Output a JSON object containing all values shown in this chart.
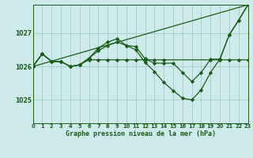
{
  "title": "Graphe pression niveau de la mer (hPa)",
  "background_color": "#ceeaea",
  "grid_color": "#a8d0d0",
  "line_color": "#1a5c1a",
  "yticks": [
    1025,
    1026,
    1027
  ],
  "ylim": [
    1024.3,
    1027.85
  ],
  "xlim": [
    0,
    23
  ],
  "series": [
    {
      "x": [
        0,
        1,
        2,
        3,
        4,
        5,
        6,
        7,
        8,
        9,
        10,
        11,
        12,
        13,
        14,
        15,
        16,
        17,
        18,
        19,
        20,
        21,
        22,
        23
      ],
      "y": [
        1026.0,
        1026.4,
        1026.15,
        1026.15,
        1026.0,
        1026.05,
        1026.2,
        1026.2,
        1026.2,
        1026.2,
        1026.2,
        1026.2,
        1026.2,
        1026.2,
        1026.2,
        1026.2,
        1026.2,
        1026.2,
        1026.2,
        1026.2,
        1026.2,
        1026.2,
        1026.2,
        1026.2
      ]
    },
    {
      "x": [
        0,
        23
      ],
      "y": [
        1026.0,
        1027.85
      ]
    },
    {
      "x": [
        0,
        1,
        2,
        3,
        4,
        5,
        6,
        7,
        8,
        9,
        10,
        11,
        12,
        13,
        14,
        15,
        16,
        17,
        18,
        19,
        20,
        21,
        22,
        23
      ],
      "y": [
        1026.0,
        1026.4,
        1026.15,
        1026.15,
        1026.0,
        1026.05,
        1026.25,
        1026.45,
        1026.62,
        1026.72,
        1026.62,
        1026.62,
        1026.22,
        1026.15,
        1026.15,
        1026.15,
        1025.82,
        1025.55,
        1025.82,
        1026.22,
        1026.22,
        1026.9,
        1027.35,
        1027.85
      ]
    },
    {
      "x": [
        0,
        1,
        2,
        3,
        4,
        5,
        6,
        7,
        8,
        9,
        10,
        11,
        12,
        13,
        14,
        15,
        16,
        17,
        18,
        19,
        20,
        21,
        22,
        23
      ],
      "y": [
        1026.0,
        1026.4,
        1026.15,
        1026.15,
        1026.0,
        1026.05,
        1026.25,
        1026.55,
        1026.72,
        1026.82,
        1026.62,
        1026.5,
        1026.12,
        1025.85,
        1025.52,
        1025.28,
        1025.05,
        1025.0,
        1025.3,
        1025.85,
        1026.22,
        1026.9,
        1027.35,
        1027.85
      ]
    }
  ]
}
